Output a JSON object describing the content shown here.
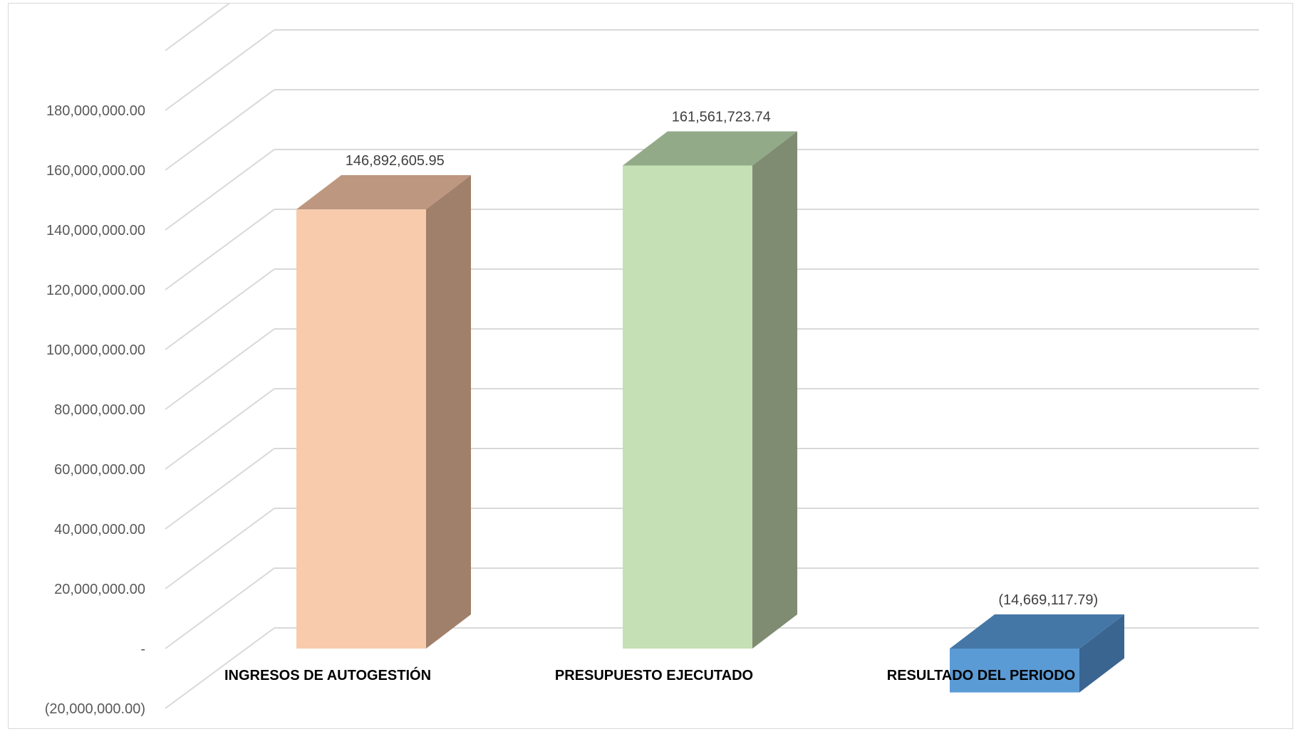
{
  "chart_data": {
    "type": "bar",
    "style": "3d-column",
    "categories": [
      "INGRESOS DE AUTOGESTIÓN",
      "PRESUPUESTO EJECUTADO",
      "RESULTADO DEL PERIODO"
    ],
    "values": [
      146892605.95,
      161561723.74,
      -14669117.79
    ],
    "data_labels": [
      "146,892,605.95",
      "161,561,723.74",
      "(14,669,117.79)"
    ],
    "yticks": [
      -20000000,
      0,
      20000000,
      40000000,
      60000000,
      80000000,
      100000000,
      120000000,
      140000000,
      160000000,
      180000000
    ],
    "ytick_labels": [
      "(20,000,000.00)",
      "-",
      "20,000,000.00",
      "40,000,000.00",
      "60,000,000.00",
      "80,000,000.00",
      "100,000,000.00",
      "120,000,000.00",
      "140,000,000.00",
      "160,000,000.00",
      "180,000,000.00"
    ],
    "ylim": [
      -20000000,
      180000000
    ],
    "grid": true,
    "legend": "none",
    "colors": {
      "bars": [
        {
          "front": "#f8cbad",
          "side": "#a0806a",
          "top": "#bd977f"
        },
        {
          "front": "#c5e0b4",
          "side": "#7f8c72",
          "top": "#93aa88"
        },
        {
          "front": "#5b9bd5",
          "side": "#3a6590",
          "top": "#4577a6"
        }
      ],
      "grid": "#d9d9d9"
    }
  }
}
